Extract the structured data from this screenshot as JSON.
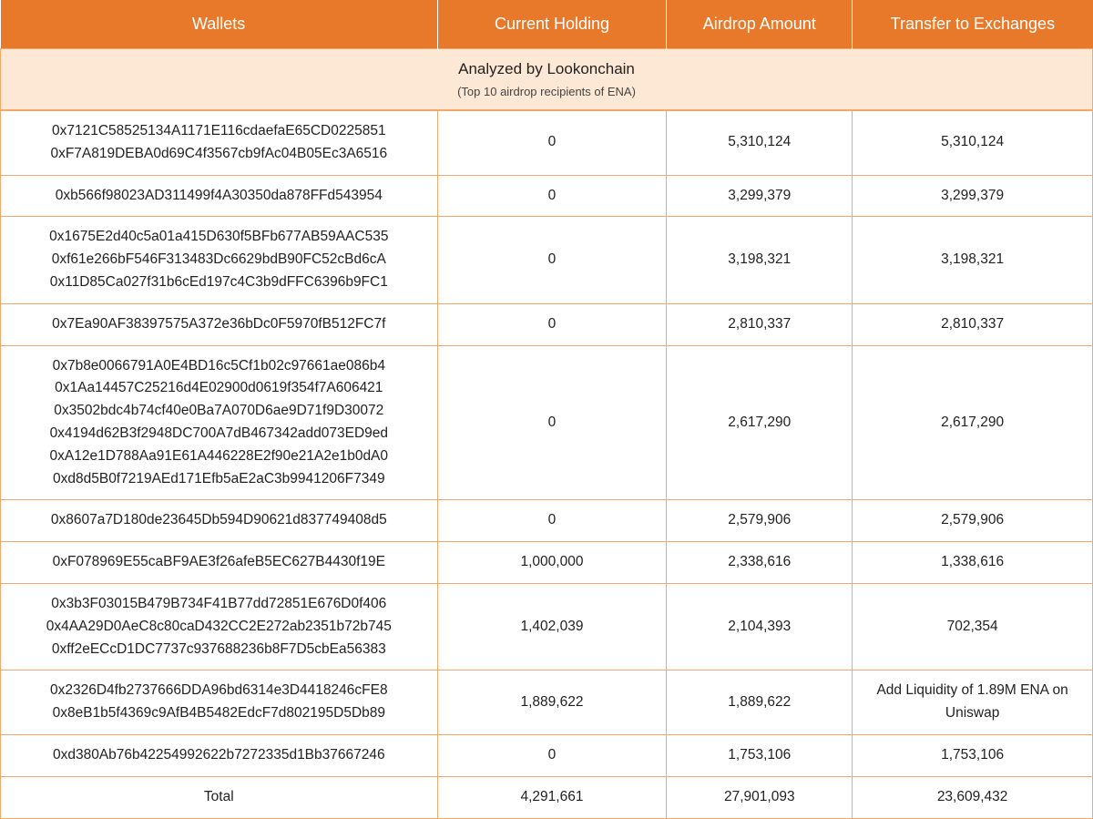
{
  "header_bg_color": "#e8792b",
  "header_text_color": "#ffffff",
  "subtitle_bg_color": "#fce8d5",
  "border_color": "#f2a86b",
  "cell_bg_color": "#ffffff",
  "text_color": "#222222",
  "columns": [
    {
      "label": "Wallets",
      "width_pct": 40
    },
    {
      "label": "Current Holding",
      "width_pct": 21
    },
    {
      "label": "Airdrop Amount",
      "width_pct": 17
    },
    {
      "label": "Transfer to Exchanges",
      "width_pct": 22
    }
  ],
  "subtitle_main": "Analyzed by Lookonchain",
  "subtitle_sub": "(Top 10 airdrop recipients of ENA)",
  "rows": [
    {
      "wallets": [
        "0x7121C58525134A1171E116cdaefaE65CD0225851",
        "0xF7A819DEBA0d69C4f3567cb9fAc04B05Ec3A6516"
      ],
      "holding": "0",
      "airdrop": "5,310,124",
      "transfer": "5,310,124"
    },
    {
      "wallets": [
        "0xb566f98023AD311499f4A30350da878FFd543954"
      ],
      "holding": "0",
      "airdrop": "3,299,379",
      "transfer": "3,299,379"
    },
    {
      "wallets": [
        "0x1675E2d40c5a01a415D630f5BFb677AB59AAC535",
        "0xf61e266bF546F313483Dc6629bdB90FC52cBd6cA",
        "0x11D85Ca027f31b6cEd197c4C3b9dFFC6396b9FC1"
      ],
      "holding": "0",
      "airdrop": "3,198,321",
      "transfer": "3,198,321"
    },
    {
      "wallets": [
        "0x7Ea90AF38397575A372e36bDc0F5970fB512FC7f"
      ],
      "holding": "0",
      "airdrop": "2,810,337",
      "transfer": "2,810,337"
    },
    {
      "wallets": [
        "0x7b8e0066791A0E4BD16c5Cf1b02c97661ae086b4",
        "0x1Aa14457C25216d4E02900d0619f354f7A606421",
        "0x3502bdc4b74cf40e0Ba7A070D6ae9D71f9D30072",
        "0x4194d62B3f2948DC700A7dB467342add073ED9ed",
        "0xA12e1D788Aa91E61A446228E2f90e21A2e1b0dA0",
        "0xd8d5B0f7219AEd171Efb5aE2aC3b9941206F7349"
      ],
      "holding": "0",
      "airdrop": "2,617,290",
      "transfer": "2,617,290"
    },
    {
      "wallets": [
        "0x8607a7D180de23645Db594D90621d837749408d5"
      ],
      "holding": "0",
      "airdrop": "2,579,906",
      "transfer": "2,579,906"
    },
    {
      "wallets": [
        "0xF078969E55caBF9AE3f26afeB5EC627B4430f19E"
      ],
      "holding": "1,000,000",
      "airdrop": "2,338,616",
      "transfer": "1,338,616"
    },
    {
      "wallets": [
        "0x3b3F03015B479B734F41B77dd72851E676D0f406",
        "0x4AA29D0AeC8c80caD432CC2E272ab2351b72b745",
        "0xff2eECcD1DC7737c937688236b8F7D5cbEa56383"
      ],
      "holding": "1,402,039",
      "airdrop": "2,104,393",
      "transfer": "702,354"
    },
    {
      "wallets": [
        "0x2326D4fb2737666DDA96bd6314e3D4418246cFE8",
        "0x8eB1b5f4369c9AfB4B5482EdcF7d802195D5Db89"
      ],
      "holding": "1,889,622",
      "airdrop": "1,889,622",
      "transfer": "Add Liquidity of 1.89M ENA on Uniswap"
    },
    {
      "wallets": [
        "0xd380Ab76b42254992622b7272335d1Bb37667246"
      ],
      "holding": "0",
      "airdrop": "1,753,106",
      "transfer": "1,753,106"
    }
  ],
  "total": {
    "label": "Total",
    "holding": "4,291,661",
    "airdrop": "27,901,093",
    "transfer": "23,609,432"
  }
}
